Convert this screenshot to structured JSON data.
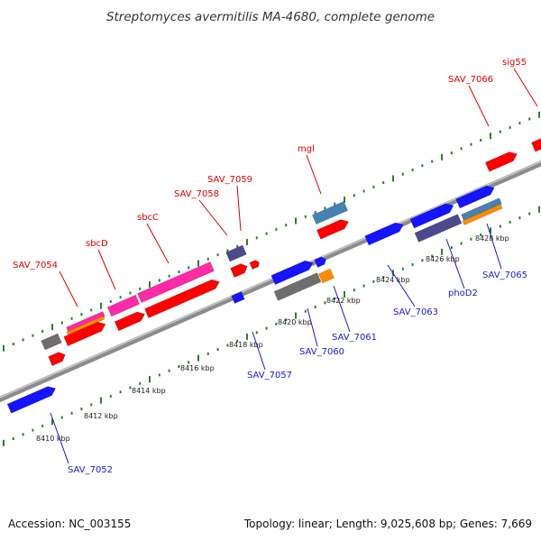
{
  "title": "Streptomyces avermitilis MA-4680, complete genome",
  "footer": {
    "accession": "Accession: NC_003155",
    "summary": "Topology: linear; Length: 9,025,608 bp; Genes: 7,669"
  },
  "colors": {
    "backbone": "#8c8c8c",
    "tick": "#2e7d2e",
    "red": "#ff0000",
    "blue": "#1414ff",
    "pink": "#ff2aa8",
    "navy": "#4a4a8c",
    "gray": "#6e6e6e",
    "steel": "#4682b4",
    "orange": "#ff8c00",
    "label_top": "#dd0000",
    "label_bottom": "#1a1acc"
  },
  "kbp_labels": [
    "8410 kbp",
    "8412 kbp",
    "8414 kbp",
    "8416 kbp",
    "8418 kbp",
    "8420 kbp",
    "8422 kbp",
    "8424 kbp",
    "8426 kbp",
    "8428 kbp"
  ],
  "gene_labels_top": [
    "SAV_7054",
    "sbcD",
    "sbcC",
    "SAV_7058",
    "SAV_7059",
    "mgl",
    "SAV_7066",
    "sig55"
  ],
  "gene_labels_bottom": [
    "SAV_7052",
    "SAV_7057",
    "SAV_7060",
    "SAV_7061",
    "SAV_7063",
    "phoD2",
    "SAV_7065"
  ]
}
